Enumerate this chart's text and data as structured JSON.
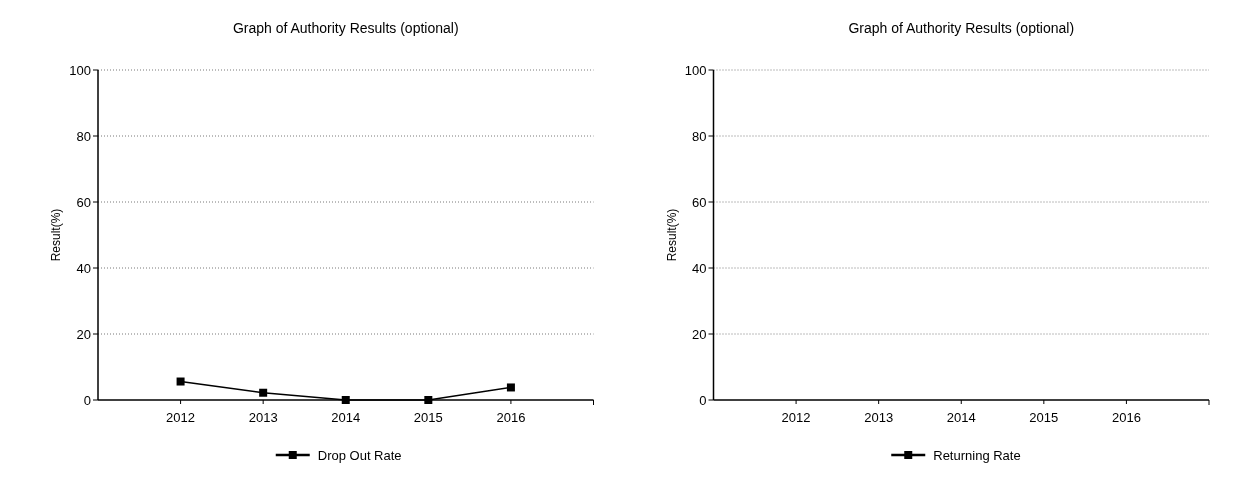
{
  "chart_data": [
    {
      "type": "line",
      "title": "Graph of Authority Results (optional)",
      "ylabel": "Result(%)",
      "categories": [
        "2012",
        "2013",
        "2014",
        "2015",
        "2016"
      ],
      "ylim": [
        0,
        100
      ],
      "yticks": [
        0,
        20,
        40,
        60,
        80,
        100
      ],
      "grid": "y",
      "legend": "bottom",
      "marker": "square",
      "line_style": "solid",
      "series": [
        {
          "name": "Drop Out Rate",
          "color": "#000000",
          "values": [
            5.6,
            2.2,
            0,
            0,
            3.8
          ]
        }
      ]
    },
    {
      "type": "line",
      "title": "Graph of Authority Results (optional)",
      "ylabel": "Result(%)",
      "categories": [
        "2012",
        "2013",
        "2014",
        "2015",
        "2016"
      ],
      "ylim": [
        0,
        100
      ],
      "yticks": [
        0,
        20,
        40,
        60,
        80,
        100
      ],
      "grid": "y",
      "legend": "bottom",
      "marker": "square",
      "line_style": "solid",
      "series": [
        {
          "name": "Returning Rate",
          "color": "#000000",
          "values": [
            null,
            null,
            null,
            null,
            null
          ]
        }
      ]
    }
  ]
}
